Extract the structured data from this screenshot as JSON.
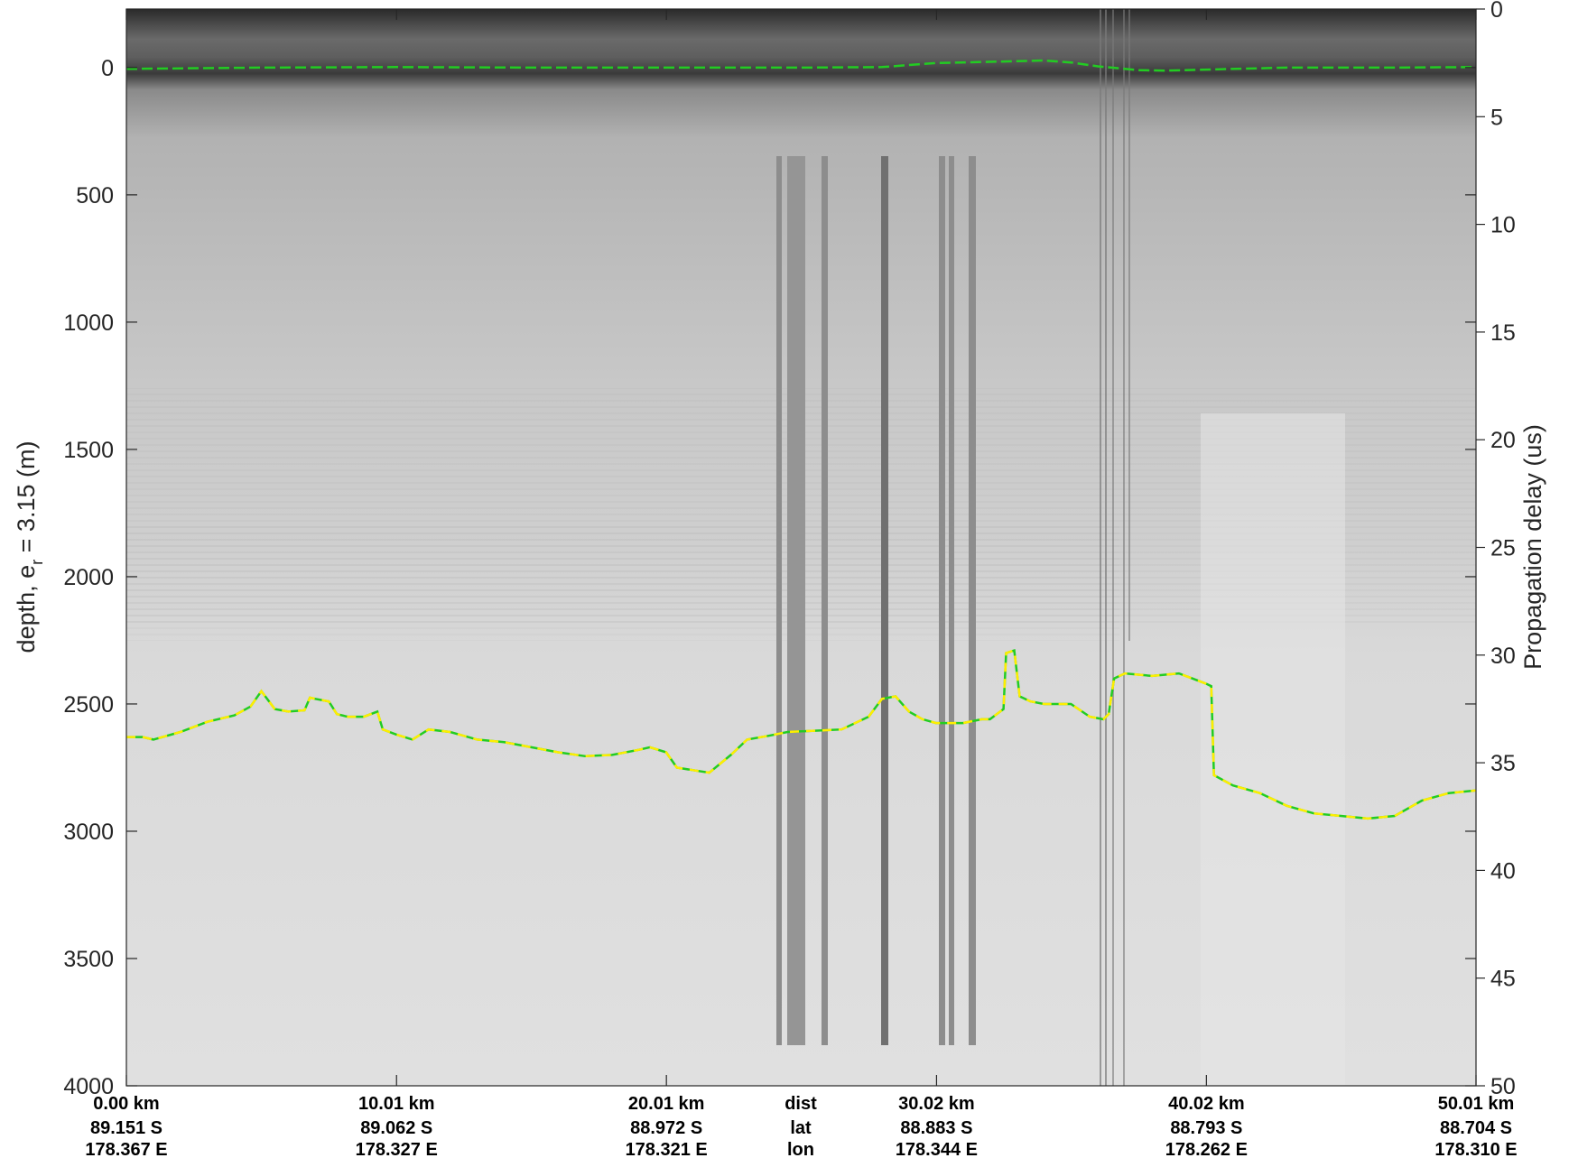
{
  "chart_data": {
    "type": "radargram",
    "left_axis": {
      "label": "depth, e",
      "label_subscript": "r",
      "label_suffix": " = 3.15 (m)",
      "range": [
        -230,
        4000
      ],
      "reversed": true,
      "ticks": [
        0,
        500,
        1000,
        1500,
        2000,
        2500,
        3000,
        3500,
        4000
      ]
    },
    "right_axis": {
      "label": "Propagation delay (us)",
      "range": [
        0,
        50
      ],
      "reversed": true,
      "ticks": [
        0,
        5,
        10,
        15,
        20,
        25,
        30,
        35,
        40,
        45,
        50
      ]
    },
    "x_axis": {
      "range_km": [
        0,
        50.01
      ],
      "row_labels": [
        "dist",
        "lat",
        "lon"
      ],
      "ticks": [
        {
          "km": 0.0,
          "dist": "0.00 km",
          "lat": "89.151 S",
          "lon": "178.367 E"
        },
        {
          "km": 10.01,
          "dist": "10.01 km",
          "lat": "89.062 S",
          "lon": "178.327 E"
        },
        {
          "km": 20.01,
          "dist": "20.01 km",
          "lat": "88.972 S",
          "lon": "178.321 E"
        },
        {
          "km": 30.02,
          "dist": "30.02 km",
          "lat": "88.883 S",
          "lon": "178.344 E"
        },
        {
          "km": 40.02,
          "dist": "40.02 km",
          "lat": "88.793 S",
          "lon": "178.262 E"
        },
        {
          "km": 50.01,
          "dist": "50.01 km",
          "lat": "88.704 S",
          "lon": "178.310 E"
        }
      ]
    },
    "surface_pick": {
      "color": "#22cc22",
      "points": [
        [
          0,
          5
        ],
        [
          5,
          0
        ],
        [
          10,
          -2
        ],
        [
          15,
          0
        ],
        [
          20,
          0
        ],
        [
          25,
          0
        ],
        [
          28,
          -2
        ],
        [
          30,
          -18
        ],
        [
          33,
          -25
        ],
        [
          34,
          -28
        ],
        [
          35,
          -20
        ],
        [
          36,
          -5
        ],
        [
          37.5,
          10
        ],
        [
          38.5,
          12
        ],
        [
          40,
          8
        ],
        [
          43,
          0
        ],
        [
          47,
          0
        ],
        [
          50.01,
          -2
        ]
      ]
    },
    "bed_pick": {
      "colors": [
        "#ffee00",
        "#22cc22"
      ],
      "points": [
        [
          0,
          2630
        ],
        [
          0.6,
          2630
        ],
        [
          1,
          2640
        ],
        [
          2,
          2610
        ],
        [
          3,
          2570
        ],
        [
          4,
          2545
        ],
        [
          4.6,
          2510
        ],
        [
          5,
          2450
        ],
        [
          5.5,
          2520
        ],
        [
          6,
          2530
        ],
        [
          6.6,
          2525
        ],
        [
          6.8,
          2475
        ],
        [
          7,
          2480
        ],
        [
          7.5,
          2490
        ],
        [
          7.8,
          2540
        ],
        [
          8.2,
          2550
        ],
        [
          8.8,
          2550
        ],
        [
          9.3,
          2530
        ],
        [
          9.5,
          2600
        ],
        [
          10,
          2620
        ],
        [
          10.6,
          2640
        ],
        [
          11.2,
          2600
        ],
        [
          12,
          2610
        ],
        [
          13,
          2640
        ],
        [
          14,
          2650
        ],
        [
          15,
          2670
        ],
        [
          16,
          2690
        ],
        [
          17,
          2705
        ],
        [
          18,
          2700
        ],
        [
          19,
          2680
        ],
        [
          19.4,
          2670
        ],
        [
          20,
          2690
        ],
        [
          20.4,
          2750
        ],
        [
          21,
          2760
        ],
        [
          21.6,
          2770
        ],
        [
          22.4,
          2700
        ],
        [
          23,
          2640
        ],
        [
          23.8,
          2625
        ],
        [
          24.5,
          2610
        ],
        [
          25.5,
          2605
        ],
        [
          26.5,
          2600
        ],
        [
          27.5,
          2550
        ],
        [
          28,
          2480
        ],
        [
          28.5,
          2470
        ],
        [
          29,
          2530
        ],
        [
          29.5,
          2560
        ],
        [
          30,
          2575
        ],
        [
          31,
          2575
        ],
        [
          31.7,
          2560
        ],
        [
          32,
          2560
        ],
        [
          32.5,
          2520
        ],
        [
          32.6,
          2300
        ],
        [
          32.9,
          2290
        ],
        [
          33.1,
          2470
        ],
        [
          33.5,
          2490
        ],
        [
          34,
          2500
        ],
        [
          35,
          2500
        ],
        [
          35.7,
          2550
        ],
        [
          36.2,
          2560
        ],
        [
          36.4,
          2540
        ],
        [
          36.6,
          2400
        ],
        [
          37,
          2380
        ],
        [
          38,
          2390
        ],
        [
          39,
          2380
        ],
        [
          39.5,
          2400
        ],
        [
          40,
          2420
        ],
        [
          40.2,
          2430
        ],
        [
          40.3,
          2780
        ],
        [
          41,
          2820
        ],
        [
          42,
          2850
        ],
        [
          43,
          2900
        ],
        [
          44,
          2930
        ],
        [
          45,
          2940
        ],
        [
          46,
          2950
        ],
        [
          47,
          2940
        ],
        [
          48,
          2880
        ],
        [
          49,
          2850
        ],
        [
          50.01,
          2840
        ]
      ]
    }
  }
}
